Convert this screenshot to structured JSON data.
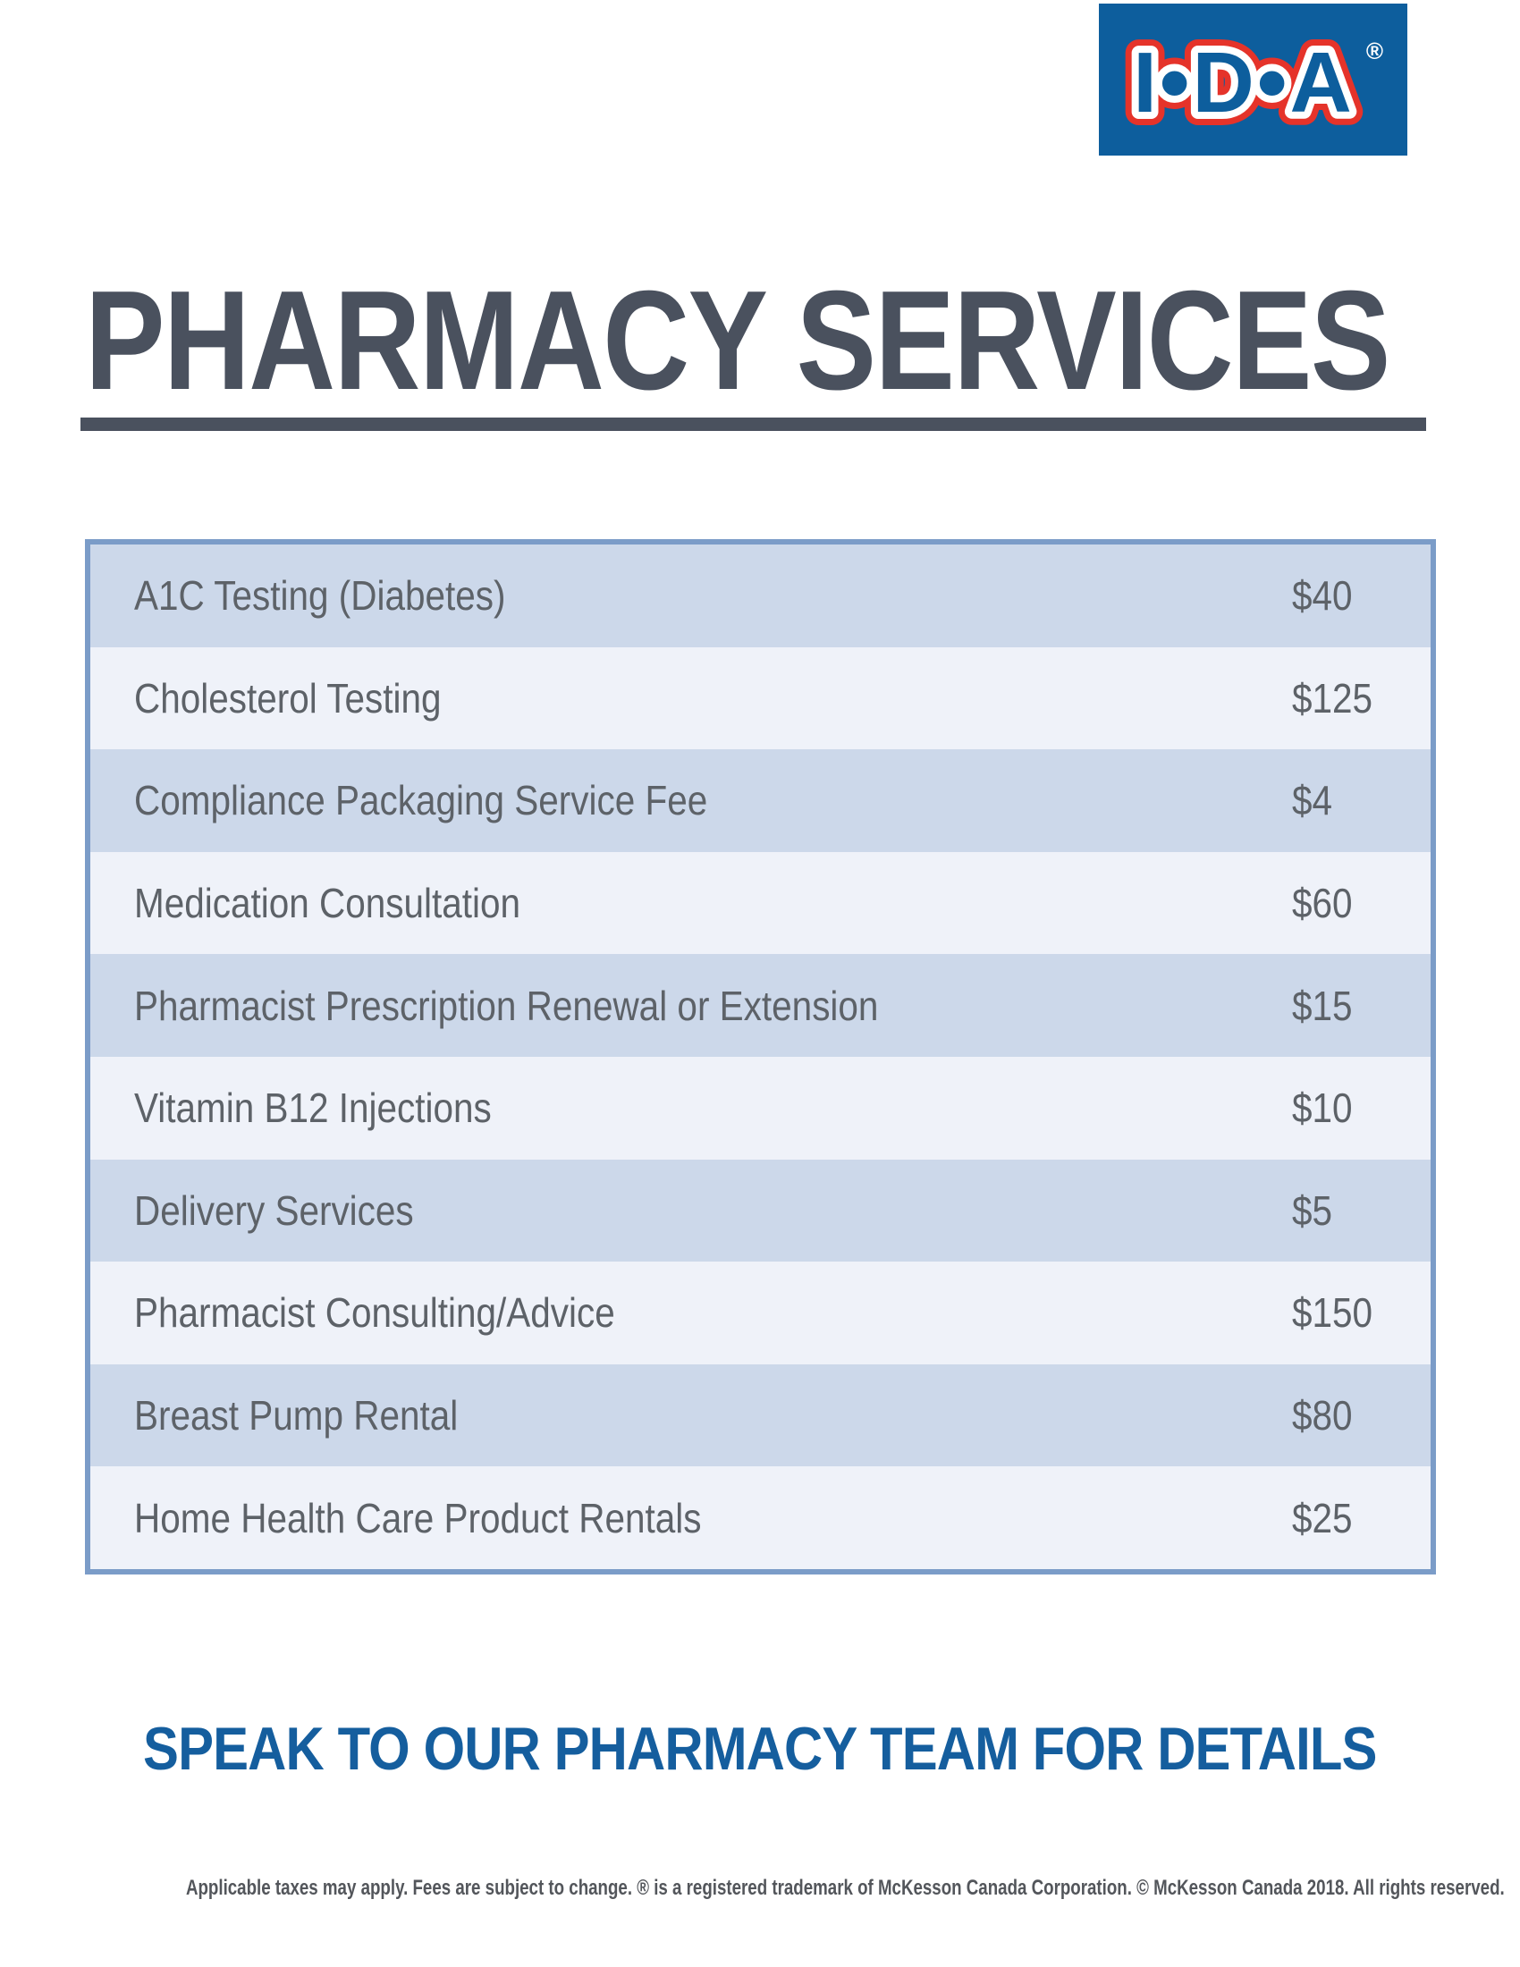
{
  "logo": {
    "text": "I•D•A",
    "registered_mark": "®",
    "bg_color": "#0D5E9D",
    "outline_red": "#E5332A",
    "outline_white": "#FFFFFF"
  },
  "title": "PHARMACY SERVICES",
  "title_color": "#4A515E",
  "table": {
    "border_color": "#7B9CC8",
    "row_dark_color": "#CCD8EA",
    "row_light_color": "#EFF2F9",
    "text_color": "#5D6268",
    "rows": [
      {
        "label": "A1C Testing (Diabetes)",
        "price": "$40"
      },
      {
        "label": "Cholesterol Testing",
        "price": "$125"
      },
      {
        "label": "Compliance Packaging Service Fee",
        "price": "$4"
      },
      {
        "label": "Medication Consultation",
        "price": "$60"
      },
      {
        "label": "Pharmacist Prescription Renewal or Extension",
        "price": "$15"
      },
      {
        "label": "Vitamin B12 Injections",
        "price": "$10"
      },
      {
        "label": "Delivery Services",
        "price": "$5"
      },
      {
        "label": "Pharmacist Consulting/Advice",
        "price": "$150"
      },
      {
        "label": "Breast Pump Rental",
        "price": "$80"
      },
      {
        "label": "Home Health Care Product Rentals",
        "price": "$25"
      }
    ]
  },
  "cta": "SPEAK TO OUR PHARMACY TEAM FOR DETAILS",
  "cta_color": "#155E9E",
  "fine_print": "Applicable taxes may apply. Fees are subject to change. ® is a registered trademark of McKesson Canada Corporation. © McKesson Canada 2018. All rights reserved."
}
